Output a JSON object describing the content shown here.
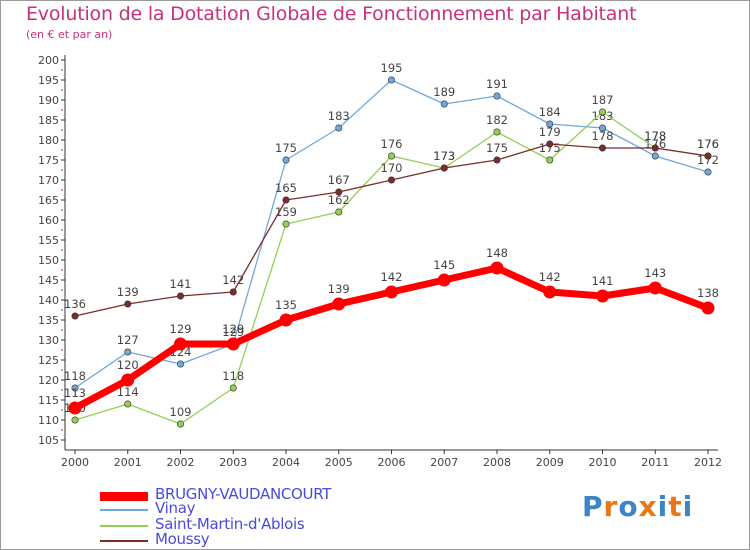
{
  "chart_data": {
    "type": "line",
    "title": "Evolution de la Dotation Globale de Fonctionnement par Habitant",
    "subtitle": "(en € et par an)",
    "xlabel": "",
    "ylabel": "",
    "x": [
      "2000",
      "2001",
      "2002",
      "2003",
      "2004",
      "2005",
      "2006",
      "2007",
      "2008",
      "2009",
      "2010",
      "2011",
      "2012"
    ],
    "ylim": [
      105,
      200
    ],
    "yticks": [
      105,
      110,
      115,
      120,
      125,
      130,
      135,
      140,
      145,
      150,
      155,
      160,
      165,
      170,
      175,
      180,
      185,
      190,
      195,
      200
    ],
    "grid": false,
    "legend_position": "bottom-left",
    "series": [
      {
        "name": "BRUGNY-VAUDANCOURT",
        "color": "#ff0000",
        "values": [
          113,
          120,
          129,
          129,
          135,
          139,
          142,
          145,
          148,
          142,
          141,
          143,
          138
        ]
      },
      {
        "name": "Vinay",
        "color": "#6fa8dc",
        "values": [
          118,
          127,
          124,
          129,
          175,
          183,
          195,
          189,
          191,
          184,
          183,
          176,
          172
        ]
      },
      {
        "name": "Saint-Martin-d'Ablois",
        "color": "#92d050",
        "values": [
          110,
          114,
          109,
          118,
          159,
          162,
          176,
          173,
          182,
          175,
          187,
          178,
          176
        ]
      },
      {
        "name": "Moussy",
        "color": "#7b2c2c",
        "values": [
          136,
          139,
          141,
          142,
          165,
          167,
          170,
          173,
          175,
          179,
          178,
          178,
          176
        ]
      }
    ]
  },
  "logo": {
    "text": "Proxiti",
    "letters": [
      "P",
      "r",
      "o",
      "x",
      "i",
      "t",
      "i"
    ],
    "letter_colors": [
      "#3a86c8",
      "#e8771b",
      "#3a86c8",
      "#e8771b",
      "#3a86c8",
      "#e8771b",
      "#3a86c8"
    ]
  },
  "colors": {
    "axis": "#333333",
    "label": "#444444",
    "title": "#c8317a",
    "legend_text": "#4a4adf"
  }
}
